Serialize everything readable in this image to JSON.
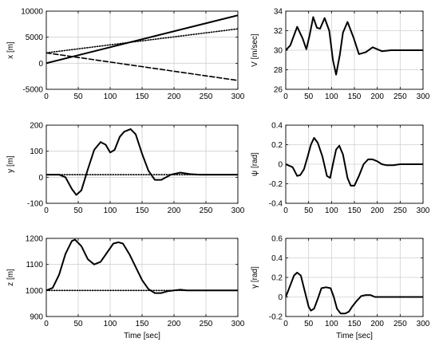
{
  "chart_data": [
    {
      "type": "line",
      "ylabel": "x [m]",
      "xlabel": "",
      "xlim": [
        0,
        300
      ],
      "ylim": [
        -5000,
        10000
      ],
      "xticks": [
        0,
        50,
        100,
        150,
        200,
        250,
        300
      ],
      "yticks": [
        -5000,
        0,
        5000,
        10000
      ],
      "grid": true,
      "series": [
        {
          "style": "solid",
          "x": [
            0,
            300
          ],
          "y": [
            0,
            9200
          ]
        },
        {
          "style": "dotted",
          "x": [
            0,
            300
          ],
          "y": [
            2000,
            6600
          ]
        },
        {
          "style": "dashed",
          "x": [
            0,
            300
          ],
          "y": [
            2000,
            -3300
          ]
        }
      ]
    },
    {
      "type": "line",
      "ylabel": "V [m/sec]",
      "xlabel": "",
      "xlim": [
        0,
        300
      ],
      "ylim": [
        26,
        34
      ],
      "xticks": [
        0,
        50,
        100,
        150,
        200,
        250,
        300
      ],
      "yticks": [
        26,
        28,
        30,
        32,
        34
      ],
      "grid": true,
      "series": [
        {
          "style": "solid",
          "x": [
            0,
            10,
            25,
            37,
            45,
            52,
            60,
            68,
            75,
            85,
            95,
            103,
            110,
            118,
            125,
            135,
            148,
            160,
            175,
            190,
            210,
            230,
            260,
            300
          ],
          "y": [
            30,
            30.5,
            32.4,
            31.2,
            30.1,
            31.5,
            33.4,
            32.3,
            32.2,
            33.3,
            32.0,
            29.0,
            27.5,
            29.5,
            31.8,
            32.9,
            31.3,
            29.6,
            29.8,
            30.3,
            29.9,
            30.0,
            30.0,
            30.0
          ]
        }
      ]
    },
    {
      "type": "line",
      "ylabel": "y [m]",
      "xlabel": "",
      "xlim": [
        0,
        300
      ],
      "ylim": [
        -100,
        200
      ],
      "xticks": [
        0,
        50,
        100,
        150,
        200,
        250,
        300
      ],
      "yticks": [
        -100,
        0,
        100,
        200
      ],
      "grid": true,
      "series": [
        {
          "style": "solid",
          "x": [
            0,
            20,
            30,
            40,
            47,
            55,
            65,
            75,
            85,
            93,
            100,
            107,
            115,
            122,
            132,
            140,
            150,
            160,
            170,
            180,
            195,
            210,
            225,
            240,
            260,
            280,
            300
          ],
          "y": [
            10,
            10,
            0,
            -45,
            -68,
            -50,
            30,
            105,
            135,
            125,
            95,
            105,
            155,
            175,
            185,
            165,
            90,
            25,
            -10,
            -10,
            10,
            18,
            12,
            10,
            10,
            10,
            10
          ]
        },
        {
          "style": "dotted",
          "x": [
            0,
            300
          ],
          "y": [
            10,
            10
          ]
        }
      ]
    },
    {
      "type": "line",
      "ylabel": "ψ [rad]",
      "xlabel": "",
      "xlim": [
        0,
        300
      ],
      "ylim": [
        -0.4,
        0.4
      ],
      "xticks": [
        0,
        50,
        100,
        150,
        200,
        250,
        300
      ],
      "yticks": [
        -0.4,
        -0.2,
        0,
        0.2,
        0.4
      ],
      "grid": true,
      "series": [
        {
          "style": "solid",
          "x": [
            0,
            15,
            25,
            32,
            40,
            48,
            55,
            62,
            70,
            80,
            90,
            97,
            103,
            110,
            117,
            125,
            135,
            142,
            150,
            160,
            170,
            180,
            190,
            200,
            210,
            220,
            235,
            250,
            270,
            300
          ],
          "y": [
            0,
            -0.03,
            -0.12,
            -0.11,
            -0.05,
            0.08,
            0.2,
            0.27,
            0.22,
            0.08,
            -0.12,
            -0.14,
            0.0,
            0.15,
            0.19,
            0.1,
            -0.14,
            -0.22,
            -0.22,
            -0.12,
            0.0,
            0.05,
            0.05,
            0.03,
            0.0,
            -0.01,
            -0.01,
            0,
            0,
            0
          ]
        }
      ]
    },
    {
      "type": "line",
      "ylabel": "z [m]",
      "xlabel": "Time [sec]",
      "xlim": [
        0,
        300
      ],
      "ylim": [
        900,
        1200
      ],
      "xticks": [
        0,
        50,
        100,
        150,
        200,
        250,
        300
      ],
      "yticks": [
        900,
        1000,
        1100,
        1200
      ],
      "grid": true,
      "series": [
        {
          "style": "solid",
          "x": [
            0,
            10,
            20,
            30,
            40,
            45,
            55,
            65,
            75,
            85,
            95,
            105,
            113,
            120,
            130,
            140,
            150,
            160,
            170,
            180,
            190,
            200,
            210,
            220,
            240,
            260,
            280,
            300
          ],
          "y": [
            1000,
            1010,
            1060,
            1140,
            1190,
            1195,
            1170,
            1120,
            1100,
            1110,
            1145,
            1180,
            1185,
            1180,
            1140,
            1090,
            1040,
            1005,
            990,
            990,
            997,
            1000,
            1003,
            1000,
            1000,
            1000,
            1000,
            1000
          ]
        },
        {
          "style": "dotted",
          "x": [
            0,
            300
          ],
          "y": [
            1000,
            1000
          ]
        }
      ]
    },
    {
      "type": "line",
      "ylabel": "γ [rad]",
      "xlabel": "Time [sec]",
      "xlim": [
        0,
        300
      ],
      "ylim": [
        -0.2,
        0.6
      ],
      "xticks": [
        0,
        50,
        100,
        150,
        200,
        250,
        300
      ],
      "yticks": [
        -0.2,
        0,
        0.2,
        0.4,
        0.6
      ],
      "grid": true,
      "series": [
        {
          "style": "solid",
          "x": [
            0,
            10,
            18,
            25,
            33,
            42,
            50,
            55,
            62,
            70,
            78,
            88,
            98,
            105,
            112,
            120,
            130,
            138,
            145,
            155,
            165,
            175,
            185,
            195,
            210,
            230,
            260,
            300
          ],
          "y": [
            0,
            0.12,
            0.22,
            0.25,
            0.22,
            0.05,
            -0.1,
            -0.14,
            -0.12,
            -0.02,
            0.09,
            0.1,
            0.09,
            0.0,
            -0.12,
            -0.17,
            -0.17,
            -0.15,
            -0.1,
            -0.04,
            0.01,
            0.02,
            0.02,
            0.0,
            0.0,
            0.0,
            0.0,
            0.0
          ]
        }
      ]
    }
  ]
}
